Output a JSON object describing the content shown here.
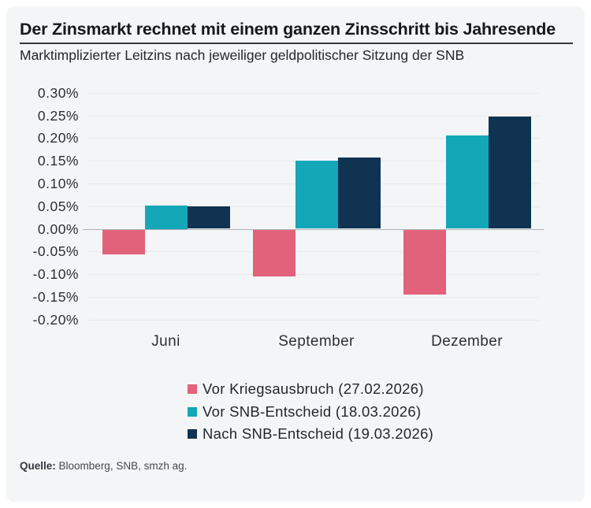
{
  "header": {
    "title": "Der Zinsmarkt rechnet mit einem ganzen Zinsschritt bis Jahresende",
    "subtitle": "Marktimplizierter Leitzins nach jeweiliger geldpolitischer Sitzung der SNB"
  },
  "chart_data": {
    "type": "bar",
    "categories": [
      "Juni",
      "September",
      "Dezember"
    ],
    "series": [
      {
        "name": "Vor Kriegsausbruch (27.02.2026)",
        "color": "#e2617b",
        "values": [
          -0.055,
          -0.103,
          -0.143
        ]
      },
      {
        "name": "Vor SNB-Entscheid (18.03.2026)",
        "color": "#14a7b8",
        "values": [
          0.052,
          0.15,
          0.205
        ]
      },
      {
        "name": "Nach SNB-Entscheid (19.03.2026)",
        "color": "#0f3351",
        "values": [
          0.049,
          0.157,
          0.247
        ]
      }
    ],
    "ylim": [
      -0.2,
      0.3
    ],
    "ytick_step": 0.05,
    "ytick_labels": [
      "0.30%",
      "0.25%",
      "0.20%",
      "0.15%",
      "0.10%",
      "0.05%",
      "0.00%",
      "-0.05%",
      "-0.10%",
      "-0.15%",
      "-0.20%"
    ],
    "grid": true,
    "legend_position": "bottom"
  },
  "source": {
    "label": "Quelle:",
    "text": "Bloomberg, SNB, smzh ag."
  },
  "colors": {
    "page_bg": "#ffffff",
    "card_bg": "#f4f5f7",
    "grid": "#e9eaec",
    "zero_line": "#aeb1b6"
  }
}
